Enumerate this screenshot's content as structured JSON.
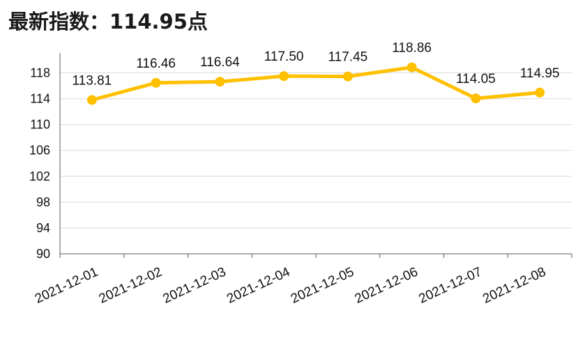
{
  "header": {
    "title": "最新指数：114.95点"
  },
  "colors": {
    "series": "#FFC000",
    "grid": "#d9d9d9",
    "axis": "#595959"
  },
  "chart_data": {
    "type": "line",
    "title": "最新指数：114.95点",
    "xlabel": "",
    "ylabel": "",
    "categories": [
      "2021-12-01",
      "2021-12-02",
      "2021-12-03",
      "2021-12-04",
      "2021-12-05",
      "2021-12-06",
      "2021-12-07",
      "2021-12-08"
    ],
    "series": [
      {
        "values": [
          113.81,
          116.46,
          116.64,
          117.5,
          117.45,
          118.86,
          114.05,
          114.95
        ]
      }
    ],
    "data_labels": [
      "113.81",
      "116.46",
      "116.64",
      "117.50",
      "117.45",
      "118.86",
      "114.05",
      "114.95"
    ],
    "ylim": [
      90,
      120
    ],
    "yticks": [
      90,
      94,
      98,
      102,
      106,
      110,
      114,
      118
    ],
    "grid": true,
    "legend": "none"
  }
}
